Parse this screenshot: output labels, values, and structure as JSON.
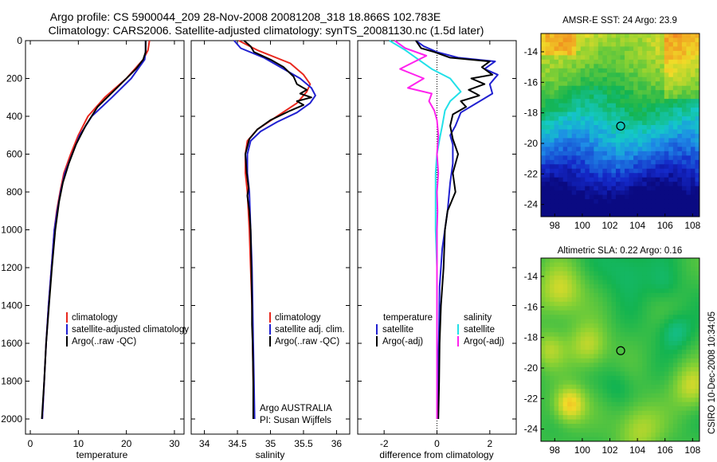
{
  "header": {
    "line1": "Argo profile: CS 5900044_209 28-Nov-2008 20081208_318 18.866S 102.783E",
    "line2": "Climatology: CARS2006. Satellite-adjusted climatology: synTS_20081130.nc (1.5d later)"
  },
  "colors": {
    "clim": "#e8281e",
    "sat": "#2020d0",
    "argo": "#000000",
    "sal_sat": "#22e0e8",
    "sal_argo": "#ff22ee"
  },
  "chart_data": [
    {
      "type": "line",
      "name": "temperature-panel",
      "xlabel": "temperature",
      "xlim": [
        -1,
        32
      ],
      "ylim": [
        0,
        2080
      ],
      "y_reversed": true,
      "xticks": [
        "0",
        "10",
        "20",
        "30"
      ],
      "yticks": [
        "0",
        "200",
        "400",
        "600",
        "800",
        "1000",
        "1200",
        "1400",
        "1600",
        "1800",
        "2000"
      ],
      "legend": [
        "climatology",
        "satellite-adjusted climatology",
        "Argo(..raw -QC)"
      ],
      "series": [
        {
          "name": "climatology",
          "color_key": "clim",
          "points": [
            [
              24.8,
              0
            ],
            [
              24.5,
              50
            ],
            [
              23.5,
              100
            ],
            [
              20,
              200
            ],
            [
              15.5,
              300
            ],
            [
              12,
              400
            ],
            [
              10,
              500
            ],
            [
              8.4,
              600
            ],
            [
              7,
              700
            ],
            [
              6.2,
              800
            ],
            [
              5.5,
              900
            ],
            [
              5,
              1000
            ],
            [
              4.4,
              1200
            ],
            [
              3.8,
              1400
            ],
            [
              3.3,
              1600
            ],
            [
              2.9,
              1800
            ],
            [
              2.5,
              2000
            ]
          ]
        },
        {
          "name": "satellite-adjusted climatology",
          "color_key": "sat",
          "points": [
            [
              24,
              0
            ],
            [
              24,
              50
            ],
            [
              23.8,
              100
            ],
            [
              21,
              200
            ],
            [
              17,
              300
            ],
            [
              12.8,
              400
            ],
            [
              10.3,
              500
            ],
            [
              8.7,
              600
            ],
            [
              7.2,
              700
            ],
            [
              6.3,
              800
            ],
            [
              5.6,
              900
            ],
            [
              5,
              1000
            ],
            [
              4.4,
              1200
            ],
            [
              3.8,
              1400
            ],
            [
              3.3,
              1600
            ],
            [
              2.9,
              1800
            ],
            [
              2.5,
              2000
            ]
          ]
        },
        {
          "name": "Argo(..raw -QC)",
          "color_key": "argo",
          "points": [
            [
              24,
              0
            ],
            [
              24,
              60
            ],
            [
              23.5,
              100
            ],
            [
              22,
              150
            ],
            [
              18,
              250
            ],
            [
              14,
              350
            ],
            [
              11.5,
              450
            ],
            [
              9.5,
              550
            ],
            [
              8,
              650
            ],
            [
              6.8,
              750
            ],
            [
              6,
              850
            ],
            [
              5.2,
              1000
            ],
            [
              4.5,
              1200
            ],
            [
              3.9,
              1400
            ],
            [
              3.3,
              1600
            ],
            [
              2.9,
              1800
            ],
            [
              2.4,
              2000
            ]
          ]
        }
      ]
    },
    {
      "type": "line",
      "name": "salinity-panel",
      "xlabel": "salinity",
      "xlim": [
        33.8,
        36.2
      ],
      "ylim": [
        0,
        2080
      ],
      "y_reversed": true,
      "xticks": [
        "34",
        "34.5",
        "35",
        "35.5",
        "36"
      ],
      "legend": [
        "climatology",
        "satellite adj. clim.",
        "Argo(..raw -QC)"
      ],
      "annotation": [
        "Argo AUSTRALIA",
        "PI: Susan Wijffels"
      ],
      "series": [
        {
          "name": "climatology",
          "color_key": "clim",
          "points": [
            [
              34.52,
              0
            ],
            [
              34.8,
              50
            ],
            [
              35.3,
              120
            ],
            [
              35.5,
              180
            ],
            [
              35.6,
              230
            ],
            [
              35.55,
              270
            ],
            [
              35.4,
              330
            ],
            [
              35.1,
              400
            ],
            [
              34.8,
              470
            ],
            [
              34.65,
              530
            ],
            [
              34.62,
              600
            ],
            [
              34.62,
              700
            ],
            [
              34.65,
              800
            ],
            [
              34.68,
              1000
            ],
            [
              34.7,
              1200
            ],
            [
              34.72,
              1400
            ],
            [
              34.73,
              1600
            ],
            [
              34.74,
              1800
            ],
            [
              34.75,
              2000
            ]
          ]
        },
        {
          "name": "satellite adj. clim.",
          "color_key": "sat",
          "points": [
            [
              34.45,
              0
            ],
            [
              34.55,
              40
            ],
            [
              34.9,
              90
            ],
            [
              35.2,
              150
            ],
            [
              35.45,
              200
            ],
            [
              35.62,
              250
            ],
            [
              35.68,
              290
            ],
            [
              35.6,
              330
            ],
            [
              35.4,
              380
            ],
            [
              35.1,
              430
            ],
            [
              34.85,
              480
            ],
            [
              34.7,
              530
            ],
            [
              34.65,
              600
            ],
            [
              34.65,
              700
            ],
            [
              34.68,
              800
            ],
            [
              34.7,
              1000
            ],
            [
              34.72,
              1200
            ],
            [
              34.73,
              1400
            ],
            [
              34.74,
              1600
            ],
            [
              34.75,
              1800
            ],
            [
              34.76,
              2000
            ]
          ]
        },
        {
          "name": "Argo(..raw -QC)",
          "color_key": "argo",
          "points": [
            [
              34.6,
              0
            ],
            [
              34.7,
              30
            ],
            [
              34.75,
              60
            ],
            [
              35.0,
              100
            ],
            [
              35.2,
              140
            ],
            [
              35.35,
              190
            ],
            [
              35.4,
              230
            ],
            [
              35.55,
              260
            ],
            [
              35.45,
              280
            ],
            [
              35.62,
              300
            ],
            [
              35.4,
              320
            ],
            [
              35.5,
              340
            ],
            [
              35.3,
              370
            ],
            [
              35.0,
              420
            ],
            [
              34.8,
              470
            ],
            [
              34.68,
              520
            ],
            [
              34.62,
              600
            ],
            [
              34.64,
              700
            ],
            [
              34.67,
              780
            ],
            [
              34.65,
              820
            ],
            [
              34.68,
              900
            ],
            [
              34.7,
              1000
            ],
            [
              34.71,
              1200
            ],
            [
              34.72,
              1400
            ],
            [
              34.72,
              1500
            ],
            [
              34.73,
              1600
            ],
            [
              34.74,
              1800
            ],
            [
              34.74,
              2000
            ]
          ]
        }
      ]
    },
    {
      "type": "line",
      "name": "difference-panel",
      "xlabel": "difference from climatology",
      "xlim": [
        -3,
        3
      ],
      "ylim": [
        0,
        2080
      ],
      "y_reversed": true,
      "xticks": [
        "-2",
        "0",
        "2"
      ],
      "legend": {
        "temperature_heading": "temperature",
        "salinity_heading": "salinity",
        "entries": [
          "satellite",
          "Argo(-adj)",
          "satellite",
          "Argo(-adj)"
        ]
      },
      "series": [
        {
          "name": "temperature satellite",
          "color_key": "sat",
          "points": [
            [
              -0.8,
              0
            ],
            [
              -0.5,
              30
            ],
            [
              0,
              60
            ],
            [
              0.8,
              90
            ],
            [
              2.2,
              110
            ],
            [
              1.8,
              150
            ],
            [
              2.3,
              180
            ],
            [
              2.0,
              230
            ],
            [
              2.1,
              280
            ],
            [
              1.5,
              330
            ],
            [
              0.9,
              380
            ],
            [
              0.7,
              450
            ],
            [
              0.5,
              500
            ],
            [
              0.6,
              550
            ],
            [
              0.6,
              650
            ],
            [
              0.5,
              750
            ],
            [
              0.4,
              900
            ],
            [
              0.2,
              1100
            ],
            [
              0.1,
              1300
            ],
            [
              0.08,
              1500
            ],
            [
              0.05,
              1700
            ],
            [
              0.03,
              2000
            ]
          ]
        },
        {
          "name": "temperature Argo(-adj)",
          "color_key": "argo",
          "points": [
            [
              -0.8,
              0
            ],
            [
              -0.6,
              40
            ],
            [
              -0.1,
              60
            ],
            [
              0.5,
              90
            ],
            [
              2.0,
              110
            ],
            [
              1.7,
              140
            ],
            [
              2.1,
              180
            ],
            [
              1.3,
              200
            ],
            [
              1.8,
              230
            ],
            [
              1.2,
              260
            ],
            [
              1.6,
              290
            ],
            [
              0.9,
              320
            ],
            [
              1.1,
              350
            ],
            [
              0.6,
              390
            ],
            [
              0.5,
              450
            ],
            [
              0.6,
              520
            ],
            [
              0.8,
              600
            ],
            [
              0.6,
              700
            ],
            [
              0.7,
              800
            ],
            [
              0.4,
              900
            ],
            [
              0.3,
              1000
            ],
            [
              0.25,
              1200
            ],
            [
              0.15,
              1400
            ],
            [
              0.1,
              1600
            ],
            [
              0.08,
              1800
            ],
            [
              0.05,
              2000
            ]
          ]
        },
        {
          "name": "salinity satellite",
          "color_key": "sal_sat",
          "points": [
            [
              -1.8,
              0
            ],
            [
              -1.2,
              50
            ],
            [
              -0.7,
              100
            ],
            [
              -0.2,
              150
            ],
            [
              0.5,
              200
            ],
            [
              0.9,
              270
            ],
            [
              0.5,
              320
            ],
            [
              0.3,
              370
            ],
            [
              0.2,
              450
            ],
            [
              0.1,
              520
            ],
            [
              0.0,
              600
            ],
            [
              -0.05,
              700
            ],
            [
              -0.05,
              850
            ],
            [
              -0.05,
              1000
            ],
            [
              0.0,
              1200
            ],
            [
              0.0,
              1500
            ],
            [
              0.0,
              1800
            ],
            [
              0.0,
              2000
            ]
          ]
        },
        {
          "name": "salinity Argo(-adj)",
          "color_key": "sal_argo",
          "points": [
            [
              -1.6,
              0
            ],
            [
              -1.2,
              40
            ],
            [
              -0.4,
              80
            ],
            [
              -1.4,
              150
            ],
            [
              -0.5,
              200
            ],
            [
              -1.1,
              250
            ],
            [
              -0.2,
              280
            ],
            [
              -0.3,
              320
            ],
            [
              -0.1,
              370
            ],
            [
              0.0,
              420
            ],
            [
              0.05,
              500
            ],
            [
              0.0,
              600
            ],
            [
              0.05,
              700
            ],
            [
              0.0,
              800
            ],
            [
              0.02,
              900
            ],
            [
              0.0,
              1000
            ],
            [
              0.0,
              1200
            ],
            [
              0.0,
              1500
            ],
            [
              0.0,
              1800
            ],
            [
              0.0,
              2000
            ]
          ]
        }
      ]
    },
    {
      "type": "heatmap",
      "name": "sst-map",
      "title": "AMSR-E SST: 24  Argo: 23.9",
      "xlim": [
        97,
        108.5
      ],
      "ylim": [
        -24.8,
        -12.8
      ],
      "xticks": [
        "98",
        "100",
        "102",
        "104",
        "106",
        "108"
      ],
      "yticks": [
        "-14",
        "-16",
        "-18",
        "-20",
        "-22",
        "-24"
      ],
      "marker": [
        102.783,
        -18.866
      ]
    },
    {
      "type": "heatmap",
      "name": "sla-map",
      "title": "Altimetric SLA: 0.22  Argo: 0.16",
      "xlim": [
        97,
        108.5
      ],
      "ylim": [
        -24.8,
        -12.8
      ],
      "xticks": [
        "98",
        "100",
        "102",
        "104",
        "106",
        "108"
      ],
      "yticks": [
        "-14",
        "-16",
        "-18",
        "-20",
        "-22",
        "-24"
      ],
      "marker": [
        102.783,
        -18.866
      ]
    }
  ],
  "footer": {
    "stamp": "CSIRO 10-Dec-2008 10:34:05"
  }
}
